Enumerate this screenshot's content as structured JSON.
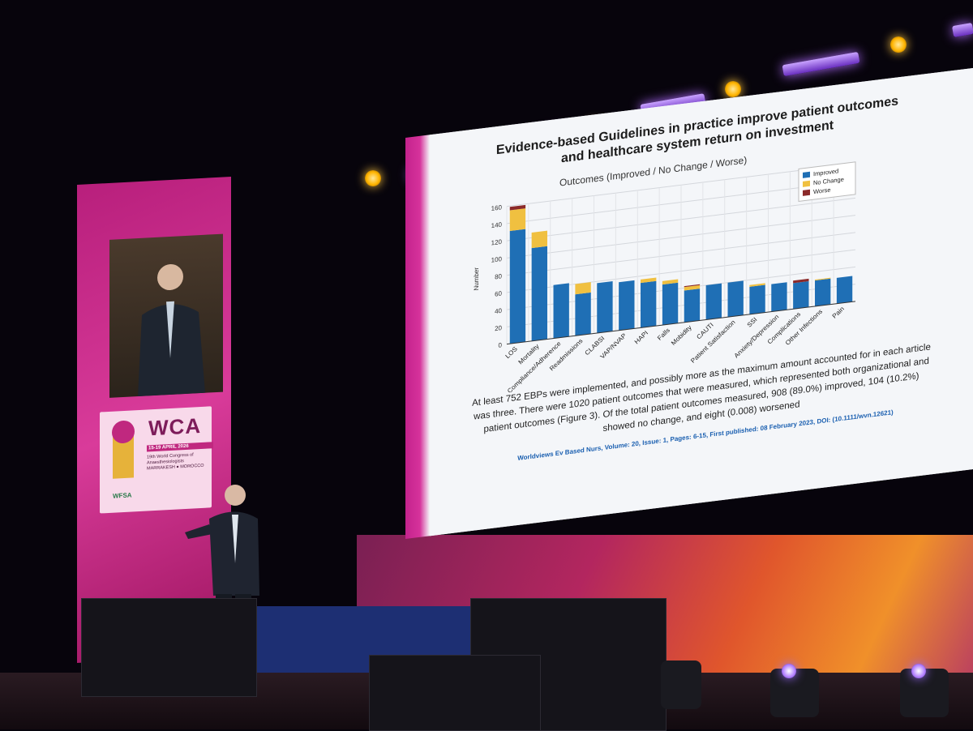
{
  "slide": {
    "title_line1": "Evidence-based Guidelines in practice improve patient outcomes",
    "title_line2": "and healthcare system return on investment",
    "chart_subtitle": "Outcomes (Improved / No Change / Worse)",
    "caption": "At least 752 EBPs were implemented, and possibly more as the maximum amount accounted for in each article was three. There were 1020 patient outcomes that were measured, which represented both organizational and patient outcomes (Figure 3). Of the total patient outcomes measured, 908 (89.0%) improved, 104 (10.2%) showed no change, and eight (0.008) worsened",
    "citation": "Worldviews Ev Based Nurs, Volume: 20, Issue: 1, Pages: 6-15, First published: 08 February 2023, DOI: (10.1111/wvn.12621)"
  },
  "chart_data": {
    "type": "bar",
    "stacked": true,
    "ylabel": "Number",
    "ylim": [
      0,
      160
    ],
    "yticks": [
      0,
      20,
      40,
      60,
      80,
      100,
      120,
      140,
      160
    ],
    "grid": true,
    "legend_position": "top-right",
    "categories": [
      "LOS",
      "Mortality",
      "Compliance/Adherence",
      "Readmissions",
      "CLABSI",
      "VAP/NVAP",
      "HAPI",
      "Falls",
      "Mobidity",
      "CAUTI",
      "Patient Satisfaction",
      "SSI",
      "Anxiety/Depression",
      "Complications",
      "Other Infections",
      "Pain"
    ],
    "series": [
      {
        "name": "Improved",
        "color": "#1f6fb5",
        "values": [
          131,
          108,
          62,
          48,
          58,
          56,
          52,
          47,
          37,
          40,
          40,
          32,
          32,
          30,
          30,
          30
        ]
      },
      {
        "name": "No Change",
        "color": "#f0c040",
        "values": [
          24,
          18,
          0,
          12,
          0,
          0,
          4,
          4,
          4,
          0,
          0,
          2,
          0,
          0,
          1,
          0
        ]
      },
      {
        "name": "Worse",
        "color": "#8b2a2a",
        "values": [
          4,
          0,
          0,
          0,
          0,
          0,
          0,
          0,
          1,
          0,
          0,
          0,
          0,
          3,
          0,
          0
        ]
      }
    ]
  },
  "side_screen": {
    "logo_text": "WCA",
    "date": "15-19 APRIL 2026",
    "congress": "19th World Congress of Anaesthesiologists",
    "location": "MARRAKESH ● MOROCCO",
    "partner": "WFSA"
  },
  "colors": {
    "brand_magenta": "#c4238d",
    "stage_blue": "#1d2f73",
    "light_purple": "#b06bff"
  }
}
